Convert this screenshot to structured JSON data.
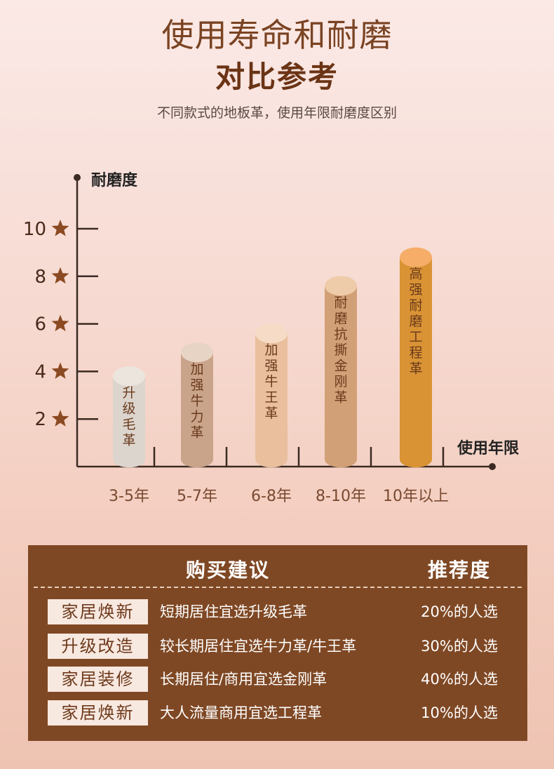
{
  "header": {
    "title_line1": "使用寿命和耐磨",
    "title_line2": "对比参考",
    "subtitle": "不同款式的地板革，使用年限耐磨度区别"
  },
  "chart_data": {
    "type": "bar",
    "style": "cylinder",
    "ylabel": "耐磨度",
    "xlabel": "使用年限",
    "ylim": [
      0,
      11
    ],
    "yticks": [
      2,
      4,
      6,
      8,
      10
    ],
    "ytick_icon": "star-icon",
    "categories": [
      "3-5年",
      "5-7年",
      "6-8年",
      "8-10年",
      "10年以上"
    ],
    "bar_labels": [
      "升级毛革",
      "加强牛力革",
      "加强牛王革",
      "耐磨抗撕金刚革",
      "高强耐磨工程革"
    ],
    "values": [
      3.8,
      4.8,
      5.6,
      7.6,
      8.8
    ],
    "bar_colors": [
      {
        "body": "#dcd5ce",
        "top": "#ece5de"
      },
      {
        "body": "#c9a48a",
        "top": "#e7d4c4"
      },
      {
        "body": "#e9bf9e",
        "top": "#f6dcc6"
      },
      {
        "body": "#d2a077",
        "top": "#efcca9"
      },
      {
        "body": "#d99334",
        "top": "#f6ad68"
      }
    ],
    "axis_color": "#3a2a22",
    "tick_text_color": "#4a2a1a",
    "star_color": "#8b4a22"
  },
  "panel": {
    "header_advice": "购买建议",
    "header_recommend": "推荐度",
    "rows": [
      {
        "tag": "家居焕新",
        "desc": "短期居住宜选升级毛革",
        "pct": "20%的人选"
      },
      {
        "tag": "升级改造",
        "desc": "较长期居住宜选牛力革/牛王革",
        "pct": "30%的人选"
      },
      {
        "tag": "家居装修",
        "desc": "长期居住/商用宜选金刚革",
        "pct": "40%的人选"
      },
      {
        "tag": "家居焕新",
        "desc": "大人流量商用宜选工程革",
        "pct": "10%的人选"
      }
    ]
  }
}
